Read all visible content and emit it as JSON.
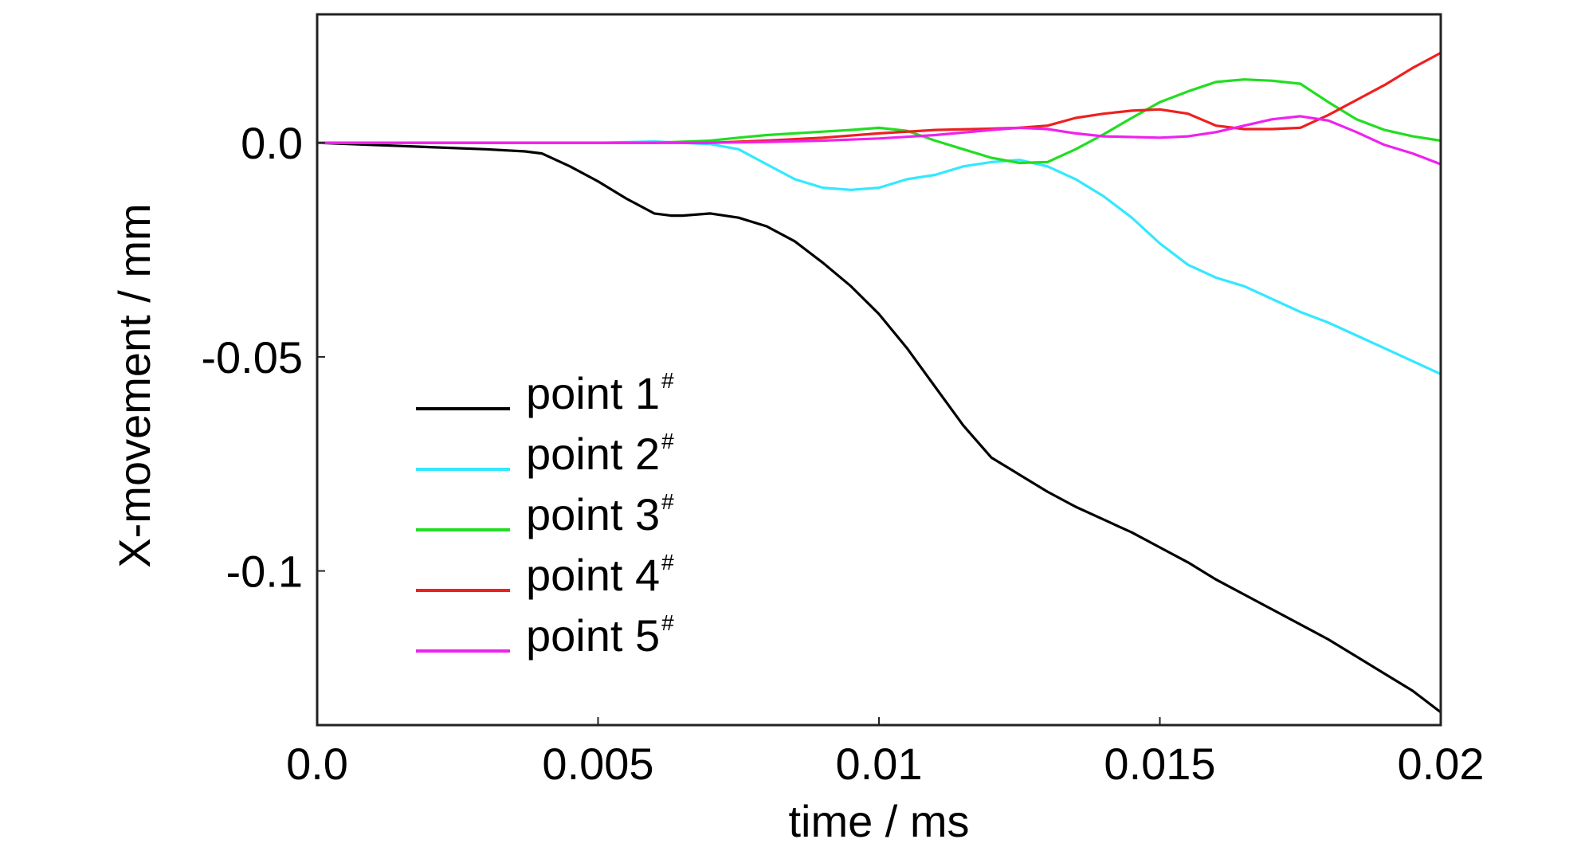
{
  "chart_data": {
    "type": "line",
    "title": "",
    "xlabel": "time / ms",
    "ylabel": "X-movement / mm",
    "xlim": [
      0,
      0.02
    ],
    "ylim": [
      -0.136,
      0.03
    ],
    "x_ticks": [
      {
        "value": 0,
        "label": "0.0"
      },
      {
        "value": 0.005,
        "label": "0.005"
      },
      {
        "value": 0.01,
        "label": "0.01"
      },
      {
        "value": 0.015,
        "label": "0.015"
      },
      {
        "value": 0.02,
        "label": "0.02"
      }
    ],
    "y_ticks": [
      {
        "value": 0,
        "label": "0.0"
      },
      {
        "value": -0.05,
        "label": "-0.05"
      },
      {
        "value": -0.1,
        "label": "-0.1"
      }
    ],
    "grid": false,
    "legend_position": "lower-left",
    "series": [
      {
        "name": "point 1",
        "name_superscript": "#",
        "color": "#000000",
        "points": [
          [
            0,
            0
          ],
          [
            0.001,
            -0.0005
          ],
          [
            0.002,
            -0.001
          ],
          [
            0.003,
            -0.0015
          ],
          [
            0.0037,
            -0.002
          ],
          [
            0.004,
            -0.0025
          ],
          [
            0.0045,
            -0.0055
          ],
          [
            0.005,
            -0.009
          ],
          [
            0.0055,
            -0.013
          ],
          [
            0.006,
            -0.0165
          ],
          [
            0.0063,
            -0.017
          ],
          [
            0.0065,
            -0.017
          ],
          [
            0.007,
            -0.0165
          ],
          [
            0.0075,
            -0.0175
          ],
          [
            0.008,
            -0.0195
          ],
          [
            0.0085,
            -0.023
          ],
          [
            0.009,
            -0.028
          ],
          [
            0.0095,
            -0.0335
          ],
          [
            0.01,
            -0.04
          ],
          [
            0.0105,
            -0.048
          ],
          [
            0.011,
            -0.057
          ],
          [
            0.0115,
            -0.066
          ],
          [
            0.012,
            -0.0735
          ],
          [
            0.0125,
            -0.0775
          ],
          [
            0.013,
            -0.0815
          ],
          [
            0.0135,
            -0.085
          ],
          [
            0.014,
            -0.088
          ],
          [
            0.0145,
            -0.091
          ],
          [
            0.015,
            -0.0945
          ],
          [
            0.0155,
            -0.098
          ],
          [
            0.016,
            -0.102
          ],
          [
            0.0165,
            -0.1055
          ],
          [
            0.017,
            -0.109
          ],
          [
            0.0175,
            -0.1125
          ],
          [
            0.018,
            -0.116
          ],
          [
            0.0185,
            -0.12
          ],
          [
            0.019,
            -0.124
          ],
          [
            0.0195,
            -0.128
          ],
          [
            0.02,
            -0.133
          ]
        ]
      },
      {
        "name": "point 2",
        "name_superscript": "#",
        "color": "#33e8ff",
        "points": [
          [
            0,
            0
          ],
          [
            0.005,
            0
          ],
          [
            0.006,
            0.0003
          ],
          [
            0.007,
            -0.0003
          ],
          [
            0.0075,
            -0.0015
          ],
          [
            0.008,
            -0.005
          ],
          [
            0.0085,
            -0.0085
          ],
          [
            0.009,
            -0.0105
          ],
          [
            0.0095,
            -0.011
          ],
          [
            0.01,
            -0.0105
          ],
          [
            0.0105,
            -0.0085
          ],
          [
            0.011,
            -0.0075
          ],
          [
            0.0115,
            -0.0055
          ],
          [
            0.012,
            -0.0045
          ],
          [
            0.0125,
            -0.004
          ],
          [
            0.013,
            -0.0055
          ],
          [
            0.0135,
            -0.0085
          ],
          [
            0.014,
            -0.0125
          ],
          [
            0.0145,
            -0.0175
          ],
          [
            0.015,
            -0.0235
          ],
          [
            0.0155,
            -0.0285
          ],
          [
            0.016,
            -0.0315
          ],
          [
            0.0165,
            -0.0335
          ],
          [
            0.017,
            -0.0365
          ],
          [
            0.0175,
            -0.0395
          ],
          [
            0.018,
            -0.042
          ],
          [
            0.0185,
            -0.045
          ],
          [
            0.019,
            -0.048
          ],
          [
            0.0195,
            -0.051
          ],
          [
            0.02,
            -0.054
          ]
        ]
      },
      {
        "name": "point 3",
        "name_superscript": "#",
        "color": "#22dd22",
        "points": [
          [
            0,
            0
          ],
          [
            0.006,
            0
          ],
          [
            0.007,
            0.0005
          ],
          [
            0.0075,
            0.0012
          ],
          [
            0.008,
            0.0018
          ],
          [
            0.0085,
            0.0022
          ],
          [
            0.009,
            0.0026
          ],
          [
            0.0095,
            0.003
          ],
          [
            0.01,
            0.0035
          ],
          [
            0.0105,
            0.0028
          ],
          [
            0.011,
            0.0005
          ],
          [
            0.0115,
            -0.0015
          ],
          [
            0.012,
            -0.0035
          ],
          [
            0.0125,
            -0.0047
          ],
          [
            0.013,
            -0.0045
          ],
          [
            0.0135,
            -0.0015
          ],
          [
            0.014,
            0.002
          ],
          [
            0.0145,
            0.0058
          ],
          [
            0.015,
            0.0095
          ],
          [
            0.0155,
            0.012
          ],
          [
            0.016,
            0.0142
          ],
          [
            0.0165,
            0.0148
          ],
          [
            0.017,
            0.0145
          ],
          [
            0.0175,
            0.0138
          ],
          [
            0.018,
            0.0095
          ],
          [
            0.0185,
            0.0055
          ],
          [
            0.019,
            0.003
          ],
          [
            0.0195,
            0.0015
          ],
          [
            0.02,
            0.0005
          ]
        ]
      },
      {
        "name": "point 4",
        "name_superscript": "#",
        "color": "#ee2020",
        "points": [
          [
            0,
            0
          ],
          [
            0.007,
            0
          ],
          [
            0.008,
            0.0005
          ],
          [
            0.009,
            0.0012
          ],
          [
            0.01,
            0.0022
          ],
          [
            0.011,
            0.003
          ],
          [
            0.012,
            0.0033
          ],
          [
            0.0125,
            0.0035
          ],
          [
            0.013,
            0.004
          ],
          [
            0.0135,
            0.0058
          ],
          [
            0.014,
            0.0068
          ],
          [
            0.0145,
            0.0075
          ],
          [
            0.015,
            0.0078
          ],
          [
            0.0155,
            0.0068
          ],
          [
            0.016,
            0.004
          ],
          [
            0.0165,
            0.0032
          ],
          [
            0.017,
            0.0032
          ],
          [
            0.0175,
            0.0035
          ],
          [
            0.018,
            0.0065
          ],
          [
            0.0185,
            0.01
          ],
          [
            0.019,
            0.0135
          ],
          [
            0.0195,
            0.0175
          ],
          [
            0.02,
            0.021
          ]
        ]
      },
      {
        "name": "point 5",
        "name_superscript": "#",
        "color": "#ee22ee",
        "points": [
          [
            0,
            0
          ],
          [
            0.007,
            0
          ],
          [
            0.008,
            0.0002
          ],
          [
            0.009,
            0.0005
          ],
          [
            0.01,
            0.001
          ],
          [
            0.011,
            0.0018
          ],
          [
            0.012,
            0.003
          ],
          [
            0.0125,
            0.0035
          ],
          [
            0.013,
            0.0032
          ],
          [
            0.0135,
            0.0022
          ],
          [
            0.014,
            0.0015
          ],
          [
            0.015,
            0.0012
          ],
          [
            0.0155,
            0.0015
          ],
          [
            0.016,
            0.0025
          ],
          [
            0.0165,
            0.004
          ],
          [
            0.017,
            0.0055
          ],
          [
            0.0175,
            0.0062
          ],
          [
            0.018,
            0.0052
          ],
          [
            0.0185,
            0.0025
          ],
          [
            0.019,
            -0.0005
          ],
          [
            0.0195,
            -0.0025
          ],
          [
            0.02,
            -0.005
          ]
        ]
      }
    ]
  }
}
